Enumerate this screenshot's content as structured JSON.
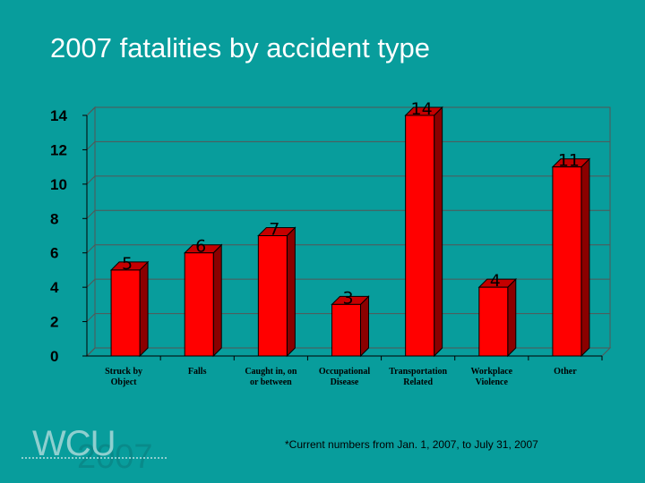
{
  "slide": {
    "title": "2007 fatalities by accident type",
    "footnote": "*Current numbers from Jan. 1, 2007, to July 31, 2007"
  },
  "logo": {
    "text": "WCU",
    "year": "2007"
  },
  "colors": {
    "background": "#089d9c",
    "bar_front": "#ff0000",
    "bar_side": "#8b0000",
    "bar_top": "#c40000",
    "plot_wall": "#089d9c"
  },
  "chart_data": {
    "type": "bar",
    "title": "",
    "xlabel": "",
    "ylabel": "",
    "categories": [
      [
        "Struck by",
        "Object"
      ],
      [
        "Falls"
      ],
      [
        "Caught in, on",
        "or between"
      ],
      [
        "Occupational",
        "Disease"
      ],
      [
        "Transportation",
        "Related"
      ],
      [
        "Workplace",
        "Violence"
      ],
      [
        "Other"
      ]
    ],
    "values": [
      5,
      6,
      7,
      3,
      14,
      4,
      11
    ],
    "ylim": [
      0,
      14
    ],
    "yticks": [
      0,
      2,
      4,
      6,
      8,
      10,
      12,
      14
    ],
    "grid": true,
    "legend": "none",
    "style": "3d-column"
  }
}
